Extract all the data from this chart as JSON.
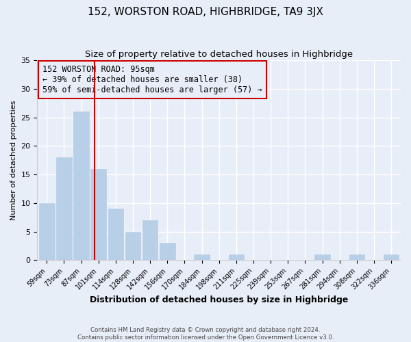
{
  "title": "152, WORSTON ROAD, HIGHBRIDGE, TA9 3JX",
  "subtitle": "Size of property relative to detached houses in Highbridge",
  "xlabel": "Distribution of detached houses by size in Highbridge",
  "ylabel": "Number of detached properties",
  "bar_labels": [
    "59sqm",
    "73sqm",
    "87sqm",
    "101sqm",
    "114sqm",
    "128sqm",
    "142sqm",
    "156sqm",
    "170sqm",
    "184sqm",
    "198sqm",
    "211sqm",
    "225sqm",
    "239sqm",
    "253sqm",
    "267sqm",
    "281sqm",
    "294sqm",
    "308sqm",
    "322sqm",
    "336sqm"
  ],
  "bar_values": [
    10,
    18,
    26,
    16,
    9,
    5,
    7,
    3,
    0,
    1,
    0,
    1,
    0,
    0,
    0,
    0,
    1,
    0,
    1,
    0,
    1
  ],
  "bar_color": "#b8cfe8",
  "bar_edgecolor": "#b8cfe8",
  "vline_x": 2.78,
  "vline_color": "#cc0000",
  "annotation_line1": "152 WORSTON ROAD: 95sqm",
  "annotation_line2": "← 39% of detached houses are smaller (38)",
  "annotation_line3": "59% of semi-detached houses are larger (57) →",
  "annotation_box_edgecolor": "#cc0000",
  "ylim": [
    0,
    35
  ],
  "yticks": [
    0,
    5,
    10,
    15,
    20,
    25,
    30,
    35
  ],
  "footer1": "Contains HM Land Registry data © Crown copyright and database right 2024.",
  "footer2": "Contains public sector information licensed under the Open Government Licence v3.0.",
  "bg_color": "#e8eef8",
  "plot_bg_color": "#e8eef8",
  "grid_color": "#ffffff",
  "title_fontsize": 11,
  "subtitle_fontsize": 9.5
}
